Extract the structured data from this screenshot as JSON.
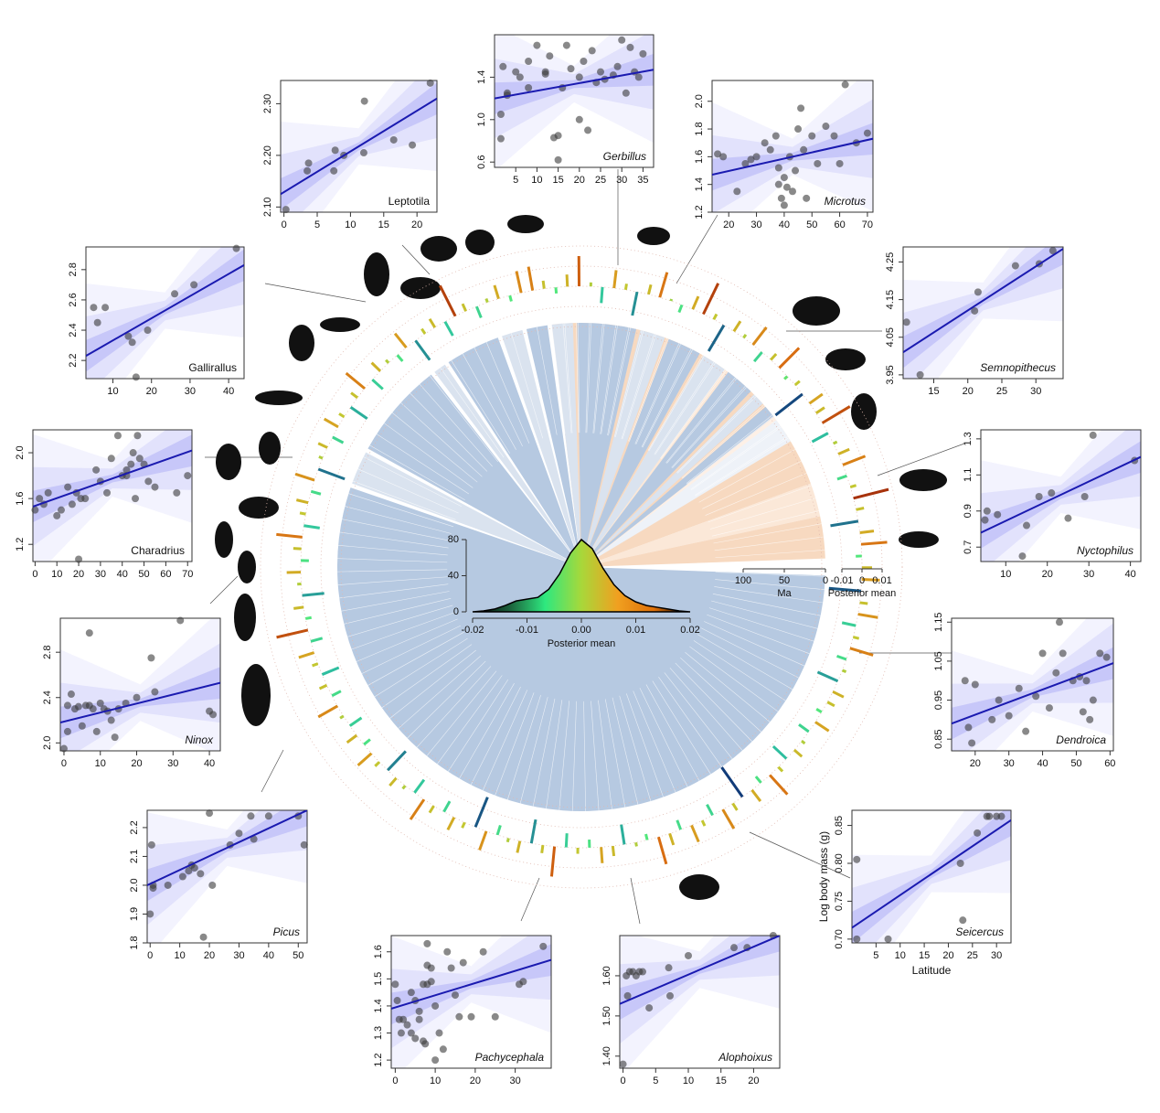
{
  "chart_data": [
    {
      "type": "scatter",
      "title": "Leptotila",
      "italic": false,
      "xlim": [
        -0.5,
        23
      ],
      "ylim": [
        2.09,
        2.345
      ],
      "xticks": [
        0,
        5,
        10,
        15,
        20
      ],
      "yticks": [
        {
          "value": 2.1,
          "label": "2.10"
        },
        {
          "value": 2.2,
          "label": "2.20"
        },
        {
          "value": 2.3,
          "label": "2.30"
        }
      ],
      "x": [
        0.3,
        3.5,
        3.7,
        7.5,
        7.7,
        9,
        12,
        12.1,
        16.5,
        19.3,
        22
      ],
      "values": [
        2.095,
        2.17,
        2.185,
        2.17,
        2.21,
        2.2,
        2.205,
        2.305,
        2.23,
        2.22,
        2.34
      ],
      "fit_y": [
        2.125,
        2.31
      ]
    },
    {
      "type": "scatter",
      "title": "Gerbillus",
      "italic": true,
      "xlim": [
        0,
        37.5
      ],
      "ylim": [
        0.55,
        1.8
      ],
      "xticks": [
        5,
        10,
        15,
        20,
        25,
        30,
        35
      ],
      "yticks": [
        0.6,
        {
          "value": 1.0,
          "label": "1.0"
        },
        1.4
      ],
      "x": [
        1.5,
        1.5,
        2,
        3,
        3,
        5,
        6,
        8,
        8,
        10,
        12,
        12,
        13,
        14,
        15,
        15,
        16,
        17,
        18,
        20,
        20,
        21,
        22,
        23,
        24,
        25,
        26,
        28,
        29,
        30,
        31,
        32,
        33,
        34,
        35
      ],
      "values": [
        0.82,
        1.05,
        1.5,
        1.25,
        1.23,
        1.45,
        1.4,
        1.55,
        1.3,
        1.7,
        1.45,
        1.43,
        1.6,
        0.83,
        0.62,
        0.85,
        1.3,
        1.7,
        1.48,
        1.4,
        1.0,
        1.55,
        0.9,
        1.65,
        1.35,
        1.45,
        1.38,
        1.42,
        1.5,
        1.75,
        1.25,
        1.68,
        1.45,
        1.4,
        1.62
      ],
      "fit_y": [
        1.2,
        1.47
      ]
    },
    {
      "type": "scatter",
      "title": "Microtus",
      "italic": true,
      "xlim": [
        14,
        72
      ],
      "ylim": [
        1.2,
        2.15
      ],
      "xticks": [
        20,
        30,
        40,
        50,
        60,
        70
      ],
      "yticks": [
        1.2,
        1.4,
        1.6,
        1.8,
        {
          "value": 2.0,
          "label": "2.0"
        }
      ],
      "x": [
        16,
        18,
        23,
        26,
        28,
        30,
        33,
        35,
        37,
        38,
        38,
        39,
        40,
        40,
        41,
        42,
        43,
        44,
        45,
        46,
        47,
        48,
        50,
        52,
        55,
        58,
        60,
        62,
        66,
        70
      ],
      "values": [
        1.62,
        1.6,
        1.35,
        1.55,
        1.58,
        1.6,
        1.7,
        1.65,
        1.75,
        1.52,
        1.4,
        1.3,
        1.45,
        1.25,
        1.38,
        1.6,
        1.35,
        1.5,
        1.8,
        1.95,
        1.65,
        1.3,
        1.75,
        1.55,
        1.82,
        1.75,
        1.55,
        2.12,
        1.7,
        1.77
      ],
      "fit_y": [
        1.47,
        1.73
      ]
    },
    {
      "type": "scatter",
      "title": "Gallirallus",
      "italic": false,
      "xlim": [
        3,
        44
      ],
      "ylim": [
        2.08,
        2.95
      ],
      "xticks": [
        10,
        20,
        30,
        40
      ],
      "yticks": [
        2.2,
        2.4,
        2.6,
        2.8
      ],
      "x": [
        5,
        6,
        8,
        14,
        15,
        16,
        19,
        26,
        31,
        42
      ],
      "values": [
        2.55,
        2.45,
        2.55,
        2.36,
        2.32,
        2.09,
        2.4,
        2.64,
        2.7,
        2.94
      ],
      "fit_y": [
        2.23,
        2.83
      ]
    },
    {
      "type": "scatter",
      "title": "Semnopithecus",
      "italic": true,
      "xlim": [
        10.5,
        34
      ],
      "ylim": [
        3.94,
        4.29
      ],
      "xticks": [
        15,
        20,
        25,
        30
      ],
      "yticks": [
        3.95,
        4.05,
        4.15,
        4.25
      ],
      "x": [
        11,
        13,
        21,
        21.5,
        27,
        30.5,
        32.5
      ],
      "values": [
        4.09,
        3.95,
        4.12,
        4.17,
        4.24,
        4.245,
        4.28
      ],
      "fit_y": [
        4.01,
        4.285
      ]
    },
    {
      "type": "scatter",
      "title": "Charadrius",
      "italic": false,
      "xlim": [
        -1,
        72
      ],
      "ylim": [
        1.05,
        2.2
      ],
      "xticks": [
        0,
        10,
        20,
        30,
        40,
        50,
        60,
        70
      ],
      "yticks": [
        1.2,
        1.6,
        {
          "value": 2.0,
          "label": "2.0"
        }
      ],
      "x": [
        0,
        2,
        4,
        6,
        10,
        12,
        15,
        17,
        19,
        20,
        21,
        23,
        28,
        30,
        33,
        35,
        38,
        40,
        42,
        42,
        44,
        45,
        46,
        47,
        48,
        50,
        52,
        55,
        65,
        70
      ],
      "values": [
        1.5,
        1.6,
        1.55,
        1.65,
        1.45,
        1.5,
        1.7,
        1.55,
        1.65,
        1.07,
        1.6,
        1.6,
        1.85,
        1.75,
        1.65,
        1.95,
        2.15,
        1.8,
        1.8,
        1.85,
        1.9,
        2.0,
        1.6,
        2.15,
        1.95,
        1.9,
        1.75,
        1.7,
        1.65,
        1.8
      ],
      "fit_y": [
        1.53,
        2.02
      ]
    },
    {
      "type": "scatter",
      "title": "Nyctophilus",
      "italic": true,
      "xlim": [
        4,
        42.5
      ],
      "ylim": [
        0.62,
        1.35
      ],
      "xticks": [
        10,
        20,
        30,
        40
      ],
      "yticks": [
        0.7,
        0.9,
        1.1,
        1.3
      ],
      "x": [
        5,
        5.5,
        8,
        14,
        15,
        18,
        21,
        25,
        29,
        31,
        41
      ],
      "values": [
        0.85,
        0.9,
        0.88,
        0.65,
        0.82,
        0.98,
        1.0,
        0.86,
        0.98,
        1.32,
        1.18
      ],
      "fit_y": [
        0.78,
        1.2
      ]
    },
    {
      "type": "scatter",
      "title": "Ninox",
      "italic": true,
      "xlim": [
        -1,
        43
      ],
      "ylim": [
        1.93,
        3.1
      ],
      "xticks": [
        0,
        10,
        20,
        30,
        40
      ],
      "yticks": [
        {
          "value": 2.0,
          "label": "2.0"
        },
        2.4,
        2.8
      ],
      "x": [
        0,
        1,
        1,
        2,
        3,
        4,
        5,
        6,
        7,
        7,
        8,
        9,
        10,
        11,
        12,
        13,
        14,
        15,
        17,
        20,
        24,
        25,
        32,
        40,
        41
      ],
      "values": [
        1.95,
        2.33,
        2.1,
        2.43,
        2.3,
        2.32,
        2.15,
        2.33,
        2.33,
        2.97,
        2.3,
        2.1,
        2.35,
        2.3,
        2.28,
        2.2,
        2.05,
        2.3,
        2.35,
        2.4,
        2.75,
        2.45,
        3.08,
        2.28,
        2.25
      ],
      "fit_y": [
        2.18,
        2.53
      ]
    },
    {
      "type": "scatter",
      "title": "Dendroica",
      "italic": true,
      "xlim": [
        13,
        61
      ],
      "ylim": [
        0.82,
        1.16
      ],
      "xticks": [
        20,
        30,
        40,
        50,
        60
      ],
      "yticks": [
        0.85,
        0.95,
        1.05,
        1.15
      ],
      "x": [
        17,
        18,
        19,
        20,
        25,
        27,
        30,
        33,
        35,
        38,
        40,
        42,
        44,
        45,
        46,
        49,
        51,
        52,
        53,
        54,
        55,
        57,
        59
      ],
      "values": [
        1.0,
        0.88,
        0.84,
        0.99,
        0.9,
        0.95,
        0.91,
        0.98,
        0.87,
        0.96,
        1.07,
        0.93,
        1.02,
        1.15,
        1.07,
        1.0,
        1.01,
        0.92,
        1.0,
        0.9,
        0.95,
        1.07,
        1.06
      ],
      "fit_y": [
        0.89,
        1.045
      ]
    },
    {
      "type": "scatter",
      "title": "Picus",
      "italic": true,
      "xlim": [
        -1,
        53
      ],
      "ylim": [
        1.8,
        2.26
      ],
      "xticks": [
        0,
        10,
        20,
        30,
        40,
        50
      ],
      "yticks": [
        1.8,
        1.9,
        {
          "value": 2.0,
          "label": "2.0"
        },
        2.1,
        2.2
      ],
      "x": [
        0,
        0.5,
        1,
        1,
        6,
        11,
        13,
        14,
        15,
        17,
        18,
        20,
        21,
        27,
        30,
        34,
        35,
        40,
        50,
        52
      ],
      "values": [
        1.9,
        2.14,
        1.99,
        2.0,
        2.0,
        2.03,
        2.05,
        2.07,
        2.06,
        2.04,
        1.82,
        2.25,
        2.0,
        2.14,
        2.18,
        2.24,
        2.16,
        2.24,
        2.24,
        2.14
      ],
      "fit_y": [
        2.0,
        2.26
      ]
    },
    {
      "type": "scatter",
      "title": "Seicercus",
      "italic": true,
      "xlim": [
        0,
        33
      ],
      "ylim": [
        0.695,
        0.87
      ],
      "xticks": [
        5,
        10,
        15,
        20,
        25,
        30
      ],
      "yticks": [
        {
          "value": 0.7,
          "label": "0.70"
        },
        0.75,
        {
          "value": 0.8,
          "label": "0.80"
        },
        0.85
      ],
      "xlabel": "Latitude",
      "ylabel": "Log body mass (g)",
      "x": [
        1,
        1,
        7.5,
        22.5,
        23,
        26,
        28,
        28.5,
        30,
        31
      ],
      "values": [
        0.805,
        0.7,
        0.7,
        0.8,
        0.725,
        0.84,
        0.862,
        0.862,
        0.862,
        0.862
      ],
      "fit_y": [
        0.715,
        0.857
      ]
    },
    {
      "type": "scatter",
      "title": "Pachycephala",
      "italic": true,
      "xlim": [
        -1,
        39
      ],
      "ylim": [
        1.17,
        1.66
      ],
      "xticks": [
        0,
        10,
        20,
        30
      ],
      "yticks": [
        1.2,
        1.3,
        1.4,
        1.5,
        1.6
      ],
      "x": [
        0,
        0.5,
        1,
        1.5,
        2,
        3,
        4,
        4,
        5,
        5,
        6,
        6,
        7,
        7,
        7.5,
        8,
        8,
        8,
        9,
        9,
        10,
        10,
        11,
        12,
        13,
        14,
        15,
        16,
        17,
        19,
        22,
        25,
        31,
        32,
        37
      ],
      "values": [
        1.48,
        1.42,
        1.35,
        1.3,
        1.35,
        1.33,
        1.45,
        1.3,
        1.42,
        1.28,
        1.38,
        1.35,
        1.48,
        1.27,
        1.26,
        1.63,
        1.55,
        1.48,
        1.54,
        1.49,
        1.2,
        1.4,
        1.3,
        1.24,
        1.6,
        1.54,
        1.44,
        1.36,
        1.56,
        1.36,
        1.6,
        1.36,
        1.48,
        1.49,
        1.62
      ],
      "fit_y": [
        1.39,
        1.57
      ]
    },
    {
      "type": "scatter",
      "title": "Alophoixus",
      "italic": true,
      "xlim": [
        -0.5,
        24
      ],
      "ylim": [
        1.37,
        1.7
      ],
      "xticks": [
        0,
        5,
        10,
        15,
        20
      ],
      "yticks": [
        {
          "value": 1.4,
          "label": "1.40"
        },
        {
          "value": 1.5,
          "label": "1.50"
        },
        {
          "value": 1.6,
          "label": "1.60"
        }
      ],
      "x": [
        0,
        0.5,
        0.7,
        1,
        1.5,
        2,
        2.5,
        3,
        4,
        7,
        7.2,
        10,
        17,
        19,
        23
      ],
      "values": [
        1.38,
        1.6,
        1.55,
        1.61,
        1.61,
        1.6,
        1.61,
        1.61,
        1.52,
        1.62,
        1.55,
        1.65,
        1.67,
        1.67,
        1.7
      ],
      "fit_y": [
        1.53,
        1.7
      ]
    },
    {
      "type": "area",
      "xlabel": "Posterior mean",
      "xlim": [
        -0.02,
        0.02
      ],
      "ylim": [
        0,
        80
      ],
      "xticks": [
        -0.02,
        -0.01,
        {
          "value": 0,
          "label": "0.00"
        },
        0.01,
        0.02
      ],
      "yticks": [
        0,
        40,
        80
      ],
      "colorscale": [
        "#000000",
        "#1b5e3a",
        "#2ee87f",
        "#a8d83a",
        "#f0a020",
        "#e07008",
        "#000000"
      ],
      "x": [
        -0.02,
        -0.018,
        -0.016,
        -0.014,
        -0.012,
        -0.01,
        -0.008,
        -0.006,
        -0.004,
        -0.002,
        0,
        0.002,
        0.004,
        0.006,
        0.008,
        0.01,
        0.012,
        0.014,
        0.016,
        0.018,
        0.02
      ],
      "values": [
        0,
        1,
        3,
        7,
        12,
        14,
        16,
        25,
        42,
        65,
        80,
        70,
        48,
        30,
        18,
        11,
        7,
        5,
        3,
        1,
        0
      ]
    },
    {
      "type": "radial_bar",
      "ylabel": "Posterior mean",
      "ylim": [
        -0.02,
        0.02
      ],
      "yticks": [
        -0.01,
        0,
        0.01
      ],
      "colorscale": [
        "#0a1f6e",
        "#1f6e8c",
        "#2fc4a0",
        "#52e87a",
        "#c2c830",
        "#d8a020",
        "#d86a10",
        "#8c1408"
      ],
      "values": [
        0.012,
        0.004,
        -0.003,
        0.006,
        0.015,
        0.002,
        -0.008,
        0.009,
        0.003,
        -0.012,
        0.005,
        0.013,
        0.001,
        -0.004,
        0.007,
        0.017,
        0.003,
        -0.015,
        0.006,
        0.002,
        0.011,
        -0.006,
        0.004,
        0.014,
        -0.002,
        0.003,
        -0.017,
        0.008,
        0.005,
        0.016,
        -0.009,
        0.002,
        0.006,
        0.012,
        -0.005,
        0.003,
        0.018,
        0.004,
        -0.014,
        0.007,
        0.013,
        -0.003,
        0.005,
        0.009,
        -0.016,
        0.004,
        0.01,
        -0.007,
        0.003,
        0.012,
        -0.005,
        0.002,
        -0.011,
        0.006,
        0.004,
        -0.003,
        0.008,
        -0.006,
        0.002,
        0.005,
        -0.009,
        0.003,
        0.013,
        -0.004,
        0.007,
        -0.018,
        0.004,
        0.011,
        -0.006,
        0.003,
        0.009,
        -0.005,
        0.006,
        0.014,
        -0.003,
        0.002,
        -0.01,
        0.005,
        0.008,
        -0.004,
        0.003,
        -0.007,
        0.015,
        0.004,
        -0.012,
        0.006,
        0.002,
        -0.005,
        0.01,
        -0.016,
        0.003,
        0.007,
        -0.006,
        0.004,
        0.012,
        -0.008,
        0.002,
        0.005,
        -0.013,
        0.003,
        0.009,
        -0.004,
        0.006,
        -0.007,
        0.002,
        0.011,
        -0.005,
        0.004,
        -0.009,
        0.003,
        0.008,
        -0.006,
        0.016,
        -0.003,
        0.005,
        -0.011,
        0.002,
        0.007,
        -0.004,
        0.004,
        0.013,
        -0.008,
        0.003,
        0.006,
        -0.005,
        0.01,
        -0.014,
        0.002,
        0.005,
        -0.006,
        0.008,
        0.003,
        -0.01,
        0.004,
        0.012,
        -0.007,
        0.006,
        0.002,
        -0.004,
        0.009,
        -0.012,
        0.003,
        0.005,
        -0.008,
        0.017,
        0.004,
        -0.006,
        0.002,
        0.007,
        -0.003,
        0.011
      ]
    },
    {
      "type": "scale",
      "xlabel": "Ma",
      "xticks": [
        100,
        50,
        0
      ]
    }
  ]
}
